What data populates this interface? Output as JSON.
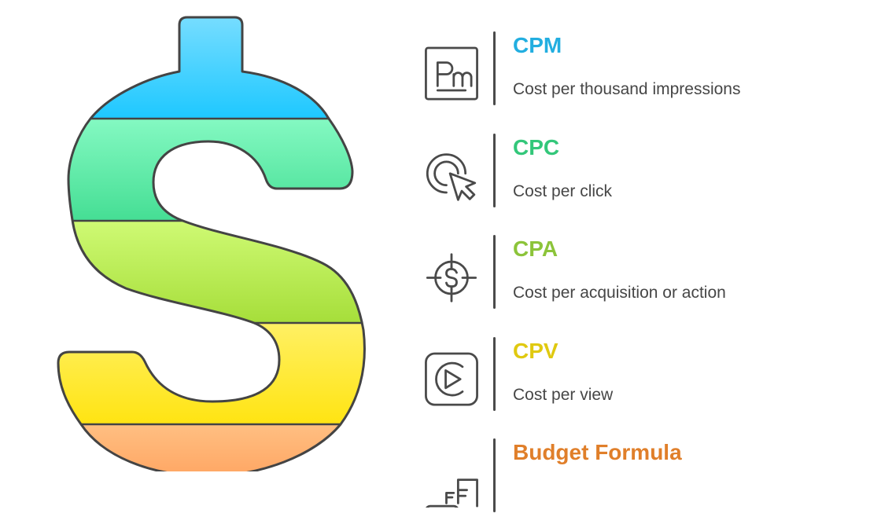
{
  "graphic": {
    "icon": "dollar-sign",
    "band_colors": [
      "#1ec8ff",
      "#45de94",
      "#a6de3a",
      "#ffe412",
      "#ffa562"
    ]
  },
  "items": [
    {
      "title": "CPM",
      "description": "Cost per thousand impressions",
      "color": "#22aee0",
      "icon": "pm-box-icon"
    },
    {
      "title": "CPC",
      "description": "Cost per click",
      "color": "#33c77a",
      "icon": "click-cursor-icon"
    },
    {
      "title": "CPA",
      "description": "Cost per acquisition or action",
      "color": "#8cc43a",
      "icon": "dollar-target-icon"
    },
    {
      "title": "CPV",
      "description": "Cost per view",
      "color": "#e0c910",
      "icon": "play-video-icon"
    },
    {
      "title": "Budget Formula",
      "description": "",
      "color": "#e07f2a",
      "icon": "formula-icon"
    }
  ]
}
